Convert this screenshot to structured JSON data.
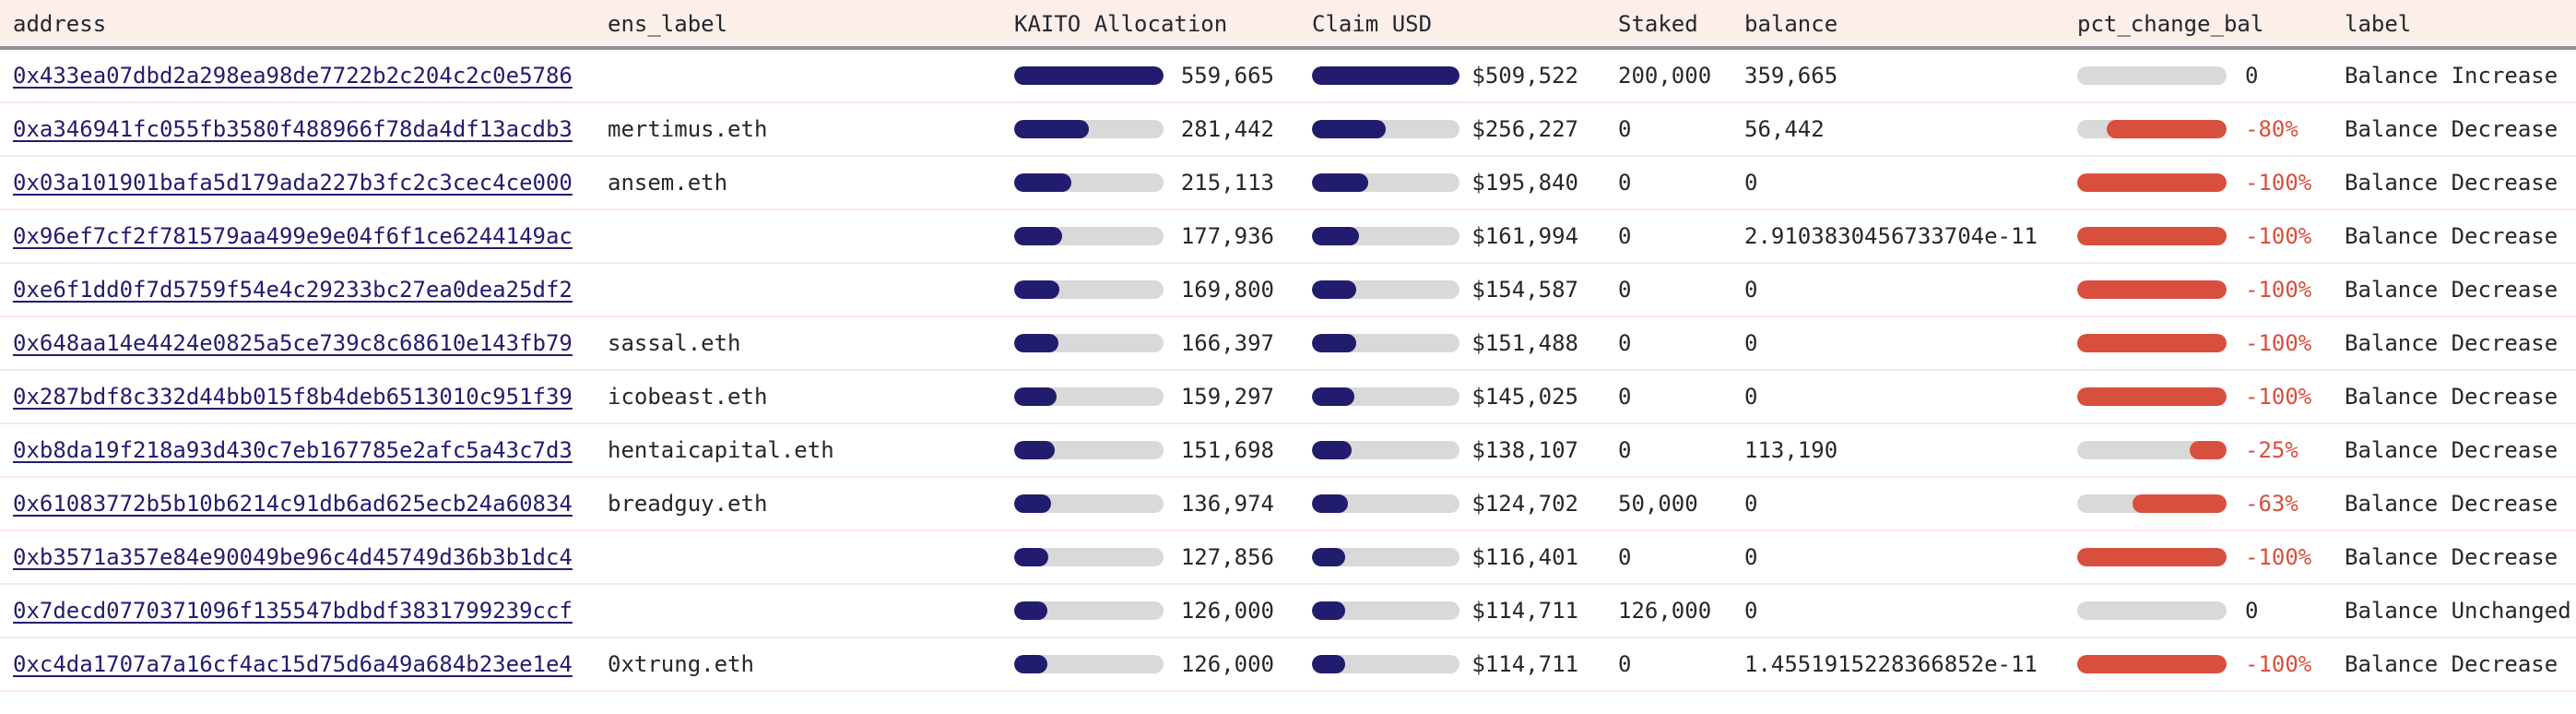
{
  "colors": {
    "header_bg": "#fceee9",
    "header_border": "#91909b",
    "row_border": "#f8e7e2",
    "text": "#26272c",
    "link_navy": "#221c6e",
    "bar_navy": "#221c6e",
    "bar_track_gray": "#d9d9d9",
    "bar_red": "#d94f3d"
  },
  "table": {
    "columns": [
      {
        "key": "address",
        "label": "address"
      },
      {
        "key": "ens_label",
        "label": "ens_label"
      },
      {
        "key": "kaito_allocation",
        "label": "KAITO Allocation"
      },
      {
        "key": "claim_usd",
        "label": "Claim USD"
      },
      {
        "key": "staked",
        "label": "Staked"
      },
      {
        "key": "balance",
        "label": "balance"
      },
      {
        "key": "pct_change_bal",
        "label": "pct_change_bal"
      },
      {
        "key": "label",
        "label": "label"
      }
    ],
    "rows": [
      {
        "address": "0x433ea07dbd2a298ea98de7722b2c204c2c0e5786",
        "ens_label": "",
        "kaito_display": "559,665",
        "kaito_fill_pct": 100,
        "claim_display": "$509,522",
        "claim_fill_pct": 100,
        "staked": "200,000",
        "balance": "359,665",
        "pct_display": "0",
        "pct_fill_pct": 0,
        "label": "Balance Increase"
      },
      {
        "address": "0xa346941fc055fb3580f488966f78da4df13acdb3",
        "ens_label": "mertimus.eth",
        "kaito_display": "281,442",
        "kaito_fill_pct": 50.3,
        "claim_display": "$256,227",
        "claim_fill_pct": 50.3,
        "staked": "0",
        "balance": "56,442",
        "pct_display": "-80%",
        "pct_fill_pct": 80,
        "label": "Balance Decrease"
      },
      {
        "address": "0x03a101901bafa5d179ada227b3fc2c3cec4ce000",
        "ens_label": "ansem.eth",
        "kaito_display": "215,113",
        "kaito_fill_pct": 38.4,
        "claim_display": "$195,840",
        "claim_fill_pct": 38.4,
        "staked": "0",
        "balance": "0",
        "pct_display": "-100%",
        "pct_fill_pct": 100,
        "label": "Balance Decrease"
      },
      {
        "address": "0x96ef7cf2f781579aa499e9e04f6f1ce6244149ac",
        "ens_label": "",
        "kaito_display": "177,936",
        "kaito_fill_pct": 31.8,
        "claim_display": "$161,994",
        "claim_fill_pct": 31.8,
        "staked": "0",
        "balance": "2.9103830456733704e-11",
        "pct_display": "-100%",
        "pct_fill_pct": 100,
        "label": "Balance Decrease"
      },
      {
        "address": "0xe6f1dd0f7d5759f54e4c29233bc27ea0dea25df2",
        "ens_label": "",
        "kaito_display": "169,800",
        "kaito_fill_pct": 30.3,
        "claim_display": "$154,587",
        "claim_fill_pct": 30.3,
        "staked": "0",
        "balance": "0",
        "pct_display": "-100%",
        "pct_fill_pct": 100,
        "label": "Balance Decrease"
      },
      {
        "address": "0x648aa14e4424e0825a5ce739c8c68610e143fb79",
        "ens_label": "sassal.eth",
        "kaito_display": "166,397",
        "kaito_fill_pct": 29.7,
        "claim_display": "$151,488",
        "claim_fill_pct": 29.7,
        "staked": "0",
        "balance": "0",
        "pct_display": "-100%",
        "pct_fill_pct": 100,
        "label": "Balance Decrease"
      },
      {
        "address": "0x287bdf8c332d44bb015f8b4deb6513010c951f39",
        "ens_label": "icobeast.eth",
        "kaito_display": "159,297",
        "kaito_fill_pct": 28.5,
        "claim_display": "$145,025",
        "claim_fill_pct": 28.5,
        "staked": "0",
        "balance": "0",
        "pct_display": "-100%",
        "pct_fill_pct": 100,
        "label": "Balance Decrease"
      },
      {
        "address": "0xb8da19f218a93d430c7eb167785e2afc5a43c7d3",
        "ens_label": "hentaicapital.eth",
        "kaito_display": "151,698",
        "kaito_fill_pct": 27.1,
        "claim_display": "$138,107",
        "claim_fill_pct": 27.1,
        "staked": "0",
        "balance": "113,190",
        "pct_display": "-25%",
        "pct_fill_pct": 25,
        "label": "Balance Decrease"
      },
      {
        "address": "0x61083772b5b10b6214c91db6ad625ecb24a60834",
        "ens_label": "breadguy.eth",
        "kaito_display": "136,974",
        "kaito_fill_pct": 24.5,
        "claim_display": "$124,702",
        "claim_fill_pct": 24.5,
        "staked": "50,000",
        "balance": "0",
        "pct_display": "-63%",
        "pct_fill_pct": 63,
        "label": "Balance Decrease"
      },
      {
        "address": "0xb3571a357e84e90049be96c4d45749d36b3b1dc4",
        "ens_label": "",
        "kaito_display": "127,856",
        "kaito_fill_pct": 22.8,
        "claim_display": "$116,401",
        "claim_fill_pct": 22.8,
        "staked": "0",
        "balance": "0",
        "pct_display": "-100%",
        "pct_fill_pct": 100,
        "label": "Balance Decrease"
      },
      {
        "address": "0x7decd0770371096f135547bdbdf3831799239ccf",
        "ens_label": "",
        "kaito_display": "126,000",
        "kaito_fill_pct": 22.5,
        "claim_display": "$114,711",
        "claim_fill_pct": 22.5,
        "staked": "126,000",
        "balance": "0",
        "pct_display": "0",
        "pct_fill_pct": 0,
        "label": "Balance Unchanged"
      },
      {
        "address": "0xc4da1707a7a16cf4ac15d75d6a49a684b23ee1e4",
        "ens_label": "0xtrung.eth",
        "kaito_display": "126,000",
        "kaito_fill_pct": 22.5,
        "claim_display": "$114,711",
        "claim_fill_pct": 22.5,
        "staked": "0",
        "balance": "1.4551915228366852e-11",
        "pct_display": "-100%",
        "pct_fill_pct": 100,
        "label": "Balance Decrease"
      }
    ]
  }
}
